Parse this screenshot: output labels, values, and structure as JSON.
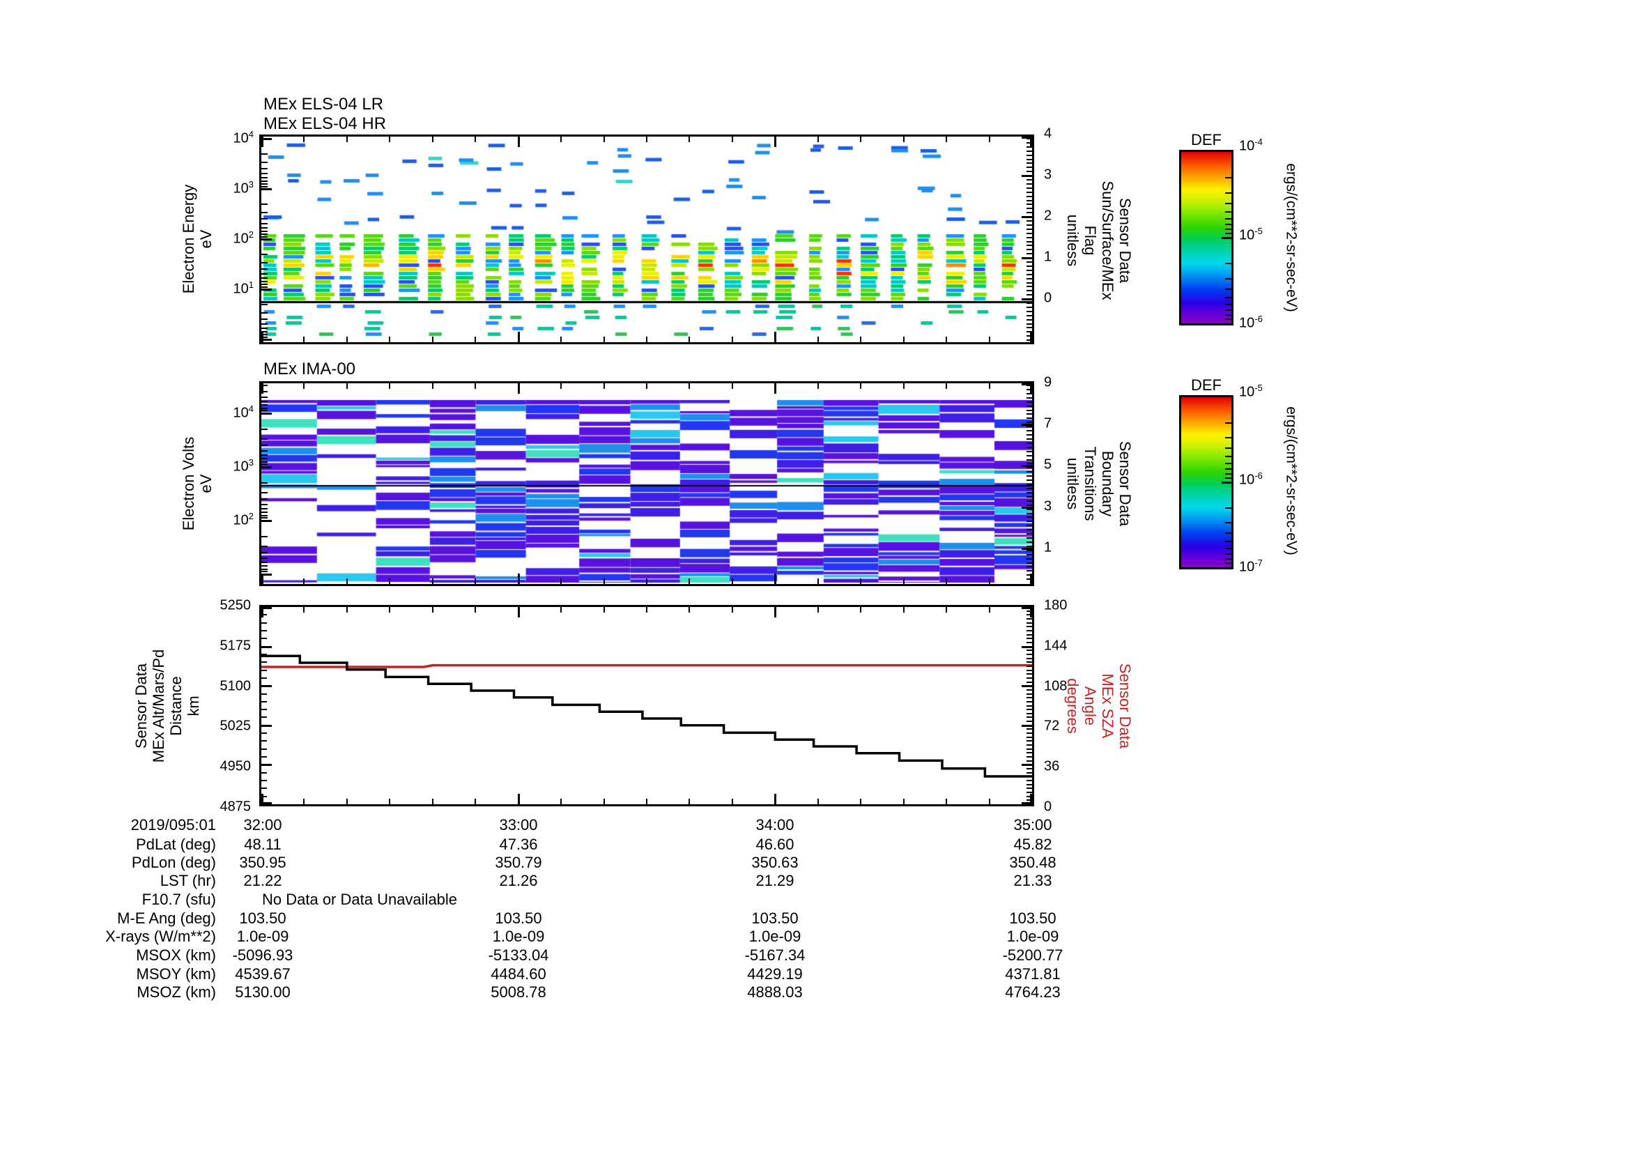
{
  "page_title": "MEx ELS / IMA / position multi-panel plot",
  "chart_data": [
    {
      "panel": "els",
      "type": "spectrogram",
      "titles": [
        "MEx ELS-04 LR",
        "MEx ELS-04 HR"
      ],
      "ylabel_lines": [
        "Electron Energy",
        "eV"
      ],
      "y_scale": "log",
      "y_tick_exponents": [
        4,
        3,
        2,
        1
      ],
      "x_range": [
        "2019/095:01 32:00",
        "2019/095:01 35:00"
      ],
      "right_axis": {
        "label_lines": [
          "Sensor Data",
          "Sun/Surface/MEx",
          "Flag",
          "unitless"
        ],
        "ticks": [
          4,
          3,
          2,
          1,
          0
        ],
        "overlay_line_value": 0
      },
      "colorbar": {
        "title": "DEF",
        "units": "ergs/(cm**2-sr-sec-eV)",
        "tick_exponents": [
          -4,
          -5,
          -6
        ],
        "gradient_stops": [
          [
            "#DE0000",
            0
          ],
          [
            "#FF5A00",
            0.08
          ],
          [
            "#FFA800",
            0.15
          ],
          [
            "#FFF000",
            0.22
          ],
          [
            "#C8F000",
            0.29
          ],
          [
            "#7CE800",
            0.36
          ],
          [
            "#2FD400",
            0.44
          ],
          [
            "#00CE56",
            0.51
          ],
          [
            "#00D4AE",
            0.58
          ],
          [
            "#00D8F0",
            0.65
          ],
          [
            "#0096F0",
            0.72
          ],
          [
            "#0040F0",
            0.8
          ],
          [
            "#2800E8",
            0.88
          ],
          [
            "#6A00D8",
            0.95
          ],
          [
            "#8A00C8",
            1
          ]
        ]
      },
      "content_summary": "Sparse blue/cyan dashes from ~200 eV up to 10 keV; dense vertical columns of green-yellow flux (occasional orange-red cores) between ~8 and ~150 eV; scattered blue/cyan/green bars below the black flag=0 line",
      "render": {
        "seed": 20190951,
        "palette": {
          "upper": [
            "#1C5CE8",
            "#1E8EF0",
            "#35D6C8"
          ],
          "hot": [
            "#FF3000",
            "#FF8A00",
            "#FFB400"
          ],
          "warm": [
            "#F0EE00",
            "#C4E800",
            "#FFD200"
          ],
          "main": [
            "#2ECC2E",
            "#58D812",
            "#00CC6E",
            "#8ADC00"
          ],
          "cool": [
            "#00C8C8",
            "#1E90FF",
            "#2850EE"
          ],
          "below": [
            "#1E90FF",
            "#00C8A0",
            "#2D66EE",
            "#2FC45A"
          ]
        }
      }
    },
    {
      "panel": "ima",
      "type": "spectrogram",
      "titles": [
        "MEx IMA-00"
      ],
      "ylabel_lines": [
        "Electron Volts",
        "eV"
      ],
      "y_scale": "log",
      "y_tick_exponents": [
        4,
        3,
        2
      ],
      "right_axis": {
        "label_lines": [
          "Sensor Data",
          "Boundary",
          "Transitions",
          "unitless"
        ],
        "ticks": [
          9,
          7,
          5,
          3,
          1
        ],
        "overlay_line_value": 4
      },
      "colorbar": {
        "title": "DEF",
        "units": "ergs/(cm**2-sr-sec-eV)",
        "tick_exponents": [
          -5,
          -6,
          -7
        ],
        "gradient_stops": [
          [
            "#DE0000",
            0
          ],
          [
            "#FF5A00",
            0.08
          ],
          [
            "#FFA800",
            0.15
          ],
          [
            "#FFF000",
            0.22
          ],
          [
            "#C8F000",
            0.29
          ],
          [
            "#7CE800",
            0.36
          ],
          [
            "#2FD400",
            0.44
          ],
          [
            "#00CE56",
            0.51
          ],
          [
            "#00D4AE",
            0.58
          ],
          [
            "#00D8F0",
            0.65
          ],
          [
            "#0096F0",
            0.72
          ],
          [
            "#0040F0",
            0.8
          ],
          [
            "#2800E8",
            0.88
          ],
          [
            "#6A00D8",
            0.95
          ],
          [
            "#8A00C8",
            1
          ]
        ]
      },
      "content_summary": "Dense violet/blue horizontal stripes with white gaps arranged in vertical blocks over the full energy range; occasional bright cyan/aqua stripes; thin black boundary-transitions line near value 4",
      "render": {
        "seed": 40950219,
        "palette": {
          "violet": "#5712E0",
          "blueviolet": "#3D1FE8",
          "blue": "#2336F0",
          "skyblue": "#1E8FEF",
          "cyan": "#29C8EE",
          "aqua": "#3FE0C0"
        }
      }
    },
    {
      "panel": "position",
      "type": "line",
      "left_axis": {
        "label_lines": [
          "Sensor Data",
          "MEx Alt/Mars/Pd",
          "Distance",
          "km"
        ],
        "lim": [
          4875,
          5250
        ],
        "ticks": [
          5250,
          5175,
          5100,
          5025,
          4950,
          4875
        ]
      },
      "right_axis": {
        "label_lines": [
          "Sensor Data",
          "MEx SZA",
          "Angle",
          "degrees"
        ],
        "lim": [
          0,
          180
        ],
        "ticks": [
          180,
          144,
          108,
          72,
          36,
          0
        ],
        "color": "#C62222"
      },
      "x_axis": {
        "start_label": "2019/095:01",
        "hour_tick_labels": [
          "32:00",
          "33:00",
          "34:00",
          "35:00"
        ],
        "minutes_range": [
          0,
          180
        ]
      },
      "series": [
        {
          "name": "MEx Alt/Mars/Pd Distance",
          "units": "km",
          "axis": "left",
          "color": "#000000",
          "step": true,
          "t_minutes": [
            0,
            9,
            20,
            29,
            39,
            49,
            59,
            68,
            79,
            89,
            98,
            108,
            120,
            129,
            139,
            149,
            159,
            169,
            180
          ],
          "values": [
            5157,
            5144,
            5131,
            5117,
            5104,
            5091,
            5078,
            5064,
            5051,
            5038,
            5025,
            5011,
            4998,
            4985,
            4972,
            4958,
            4943,
            4928
          ]
        },
        {
          "name": "MEx SZA Angle",
          "units": "degrees",
          "axis": "right",
          "color": "#C62222",
          "step": false,
          "t_minutes": [
            0,
            38,
            40,
            180
          ],
          "values": [
            125.3,
            125.3,
            126.8,
            126.8
          ]
        }
      ]
    }
  ],
  "footer_table": {
    "no_data_text": "No Data or Data Unavailable",
    "rows": [
      {
        "label": "2019/095:01",
        "values": [
          "32:00",
          "33:00",
          "34:00",
          "35:00"
        ]
      },
      {
        "label": "PdLat (deg)",
        "values": [
          "48.11",
          "47.36",
          "46.60",
          "45.82"
        ]
      },
      {
        "label": "PdLon (deg)",
        "values": [
          "350.95",
          "350.79",
          "350.63",
          "350.48"
        ]
      },
      {
        "label": "LST (hr)",
        "values": [
          "21.22",
          "21.26",
          "21.29",
          "21.33"
        ]
      },
      {
        "label": "F10.7 (sfu)",
        "values": [],
        "note": "No Data or Data Unavailable"
      },
      {
        "label": "M-E Ang (deg)",
        "values": [
          "103.50",
          "103.50",
          "103.50",
          "103.50"
        ]
      },
      {
        "label": "X-rays (W/m**2)",
        "values": [
          "1.0e-09",
          "1.0e-09",
          "1.0e-09",
          "1.0e-09"
        ]
      },
      {
        "label": "MSOX (km)",
        "values": [
          "-5096.93",
          "-5133.04",
          "-5167.34",
          "-5200.77"
        ]
      },
      {
        "label": "MSOY (km)",
        "values": [
          "4539.67",
          "4484.60",
          "4429.19",
          "4371.81"
        ]
      },
      {
        "label": "MSOZ (km)",
        "values": [
          "5130.00",
          "5008.78",
          "4888.03",
          "4764.23"
        ]
      }
    ]
  },
  "colors": {
    "axis": "#000000",
    "background": "#FFFFFF",
    "sza_red": "#C62222"
  }
}
